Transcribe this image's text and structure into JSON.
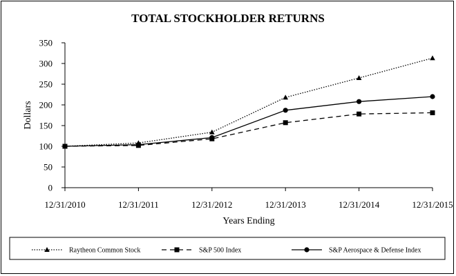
{
  "chart_data": {
    "type": "line",
    "title": "TOTAL STOCKHOLDER RETURNS",
    "xlabel": "Years Ending",
    "ylabel": "Dollars",
    "categories": [
      "12/31/2010",
      "12/31/2011",
      "12/31/2012",
      "12/31/2013",
      "12/31/2014",
      "12/31/2015"
    ],
    "ylim": [
      0,
      350
    ],
    "yticks": [
      0,
      50,
      100,
      150,
      200,
      250,
      300,
      350
    ],
    "grid": false,
    "legend_position": "bottom",
    "series": [
      {
        "name": "Raytheon Common Stock",
        "values": [
          100,
          108,
          134,
          218,
          265,
          313
        ],
        "line_style": "dotted",
        "marker": "triangle",
        "color": "#000000"
      },
      {
        "name": "S&P 500 Index",
        "values": [
          100,
          102,
          118,
          157,
          178,
          181
        ],
        "line_style": "dashed",
        "marker": "square",
        "color": "#000000"
      },
      {
        "name": "S&P Aerospace & Defense Index",
        "values": [
          100,
          104,
          121,
          187,
          208,
          220
        ],
        "line_style": "solid",
        "marker": "circle",
        "color": "#000000"
      }
    ]
  }
}
